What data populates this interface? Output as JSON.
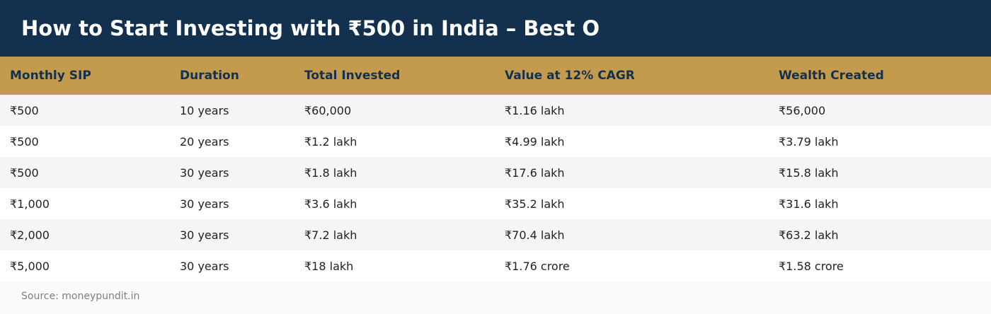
{
  "header": {
    "title": "How to Start Investing with ₹500 in India – Best O"
  },
  "table": {
    "columns": [
      "Monthly SIP",
      "Duration",
      "Total Invested",
      "Value at 12% CAGR",
      "Wealth Created"
    ],
    "rows": [
      [
        "₹500",
        "10 years",
        "₹60,000",
        "₹1.16 lakh",
        "₹56,000"
      ],
      [
        "₹500",
        "20 years",
        "₹1.2 lakh",
        "₹4.99 lakh",
        "₹3.79 lakh"
      ],
      [
        "₹500",
        "30 years",
        "₹1.8 lakh",
        "₹17.6 lakh",
        "₹15.8 lakh"
      ],
      [
        "₹1,000",
        "30 years",
        "₹3.6 lakh",
        "₹35.2 lakh",
        "₹31.6 lakh"
      ],
      [
        "₹2,000",
        "30 years",
        "₹7.2 lakh",
        "₹70.4 lakh",
        "₹63.2 lakh"
      ],
      [
        "₹5,000",
        "30 years",
        "₹18 lakh",
        "₹1.76 crore",
        "₹1.58 crore"
      ]
    ]
  },
  "footer": {
    "source": "Source: moneypundit.in"
  }
}
